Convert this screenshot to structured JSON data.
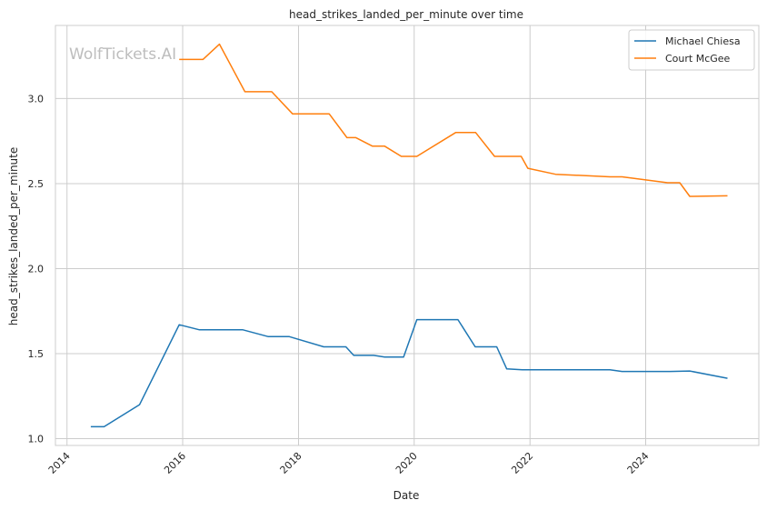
{
  "chart_data": {
    "type": "line",
    "title": "head_strikes_landed_per_minute over time",
    "xlabel": "Date",
    "ylabel": "head_strikes_landed_per_minute",
    "watermark": "WolfTickets.AI",
    "x_ticks": [
      "2014",
      "2016",
      "2018",
      "2020",
      "2022",
      "2024"
    ],
    "y_ticks": [
      "1.0",
      "1.5",
      "2.0",
      "2.5",
      "3.0"
    ],
    "xlim": [
      "2013-10-20",
      "2025-12-15"
    ],
    "ylim": [
      0.96,
      3.43
    ],
    "grid": true,
    "legend_position": "top-right",
    "series": [
      {
        "name": "Michael Chiesa",
        "color": "#1f77b4",
        "points": [
          {
            "x": "2014-05-31",
            "y": 1.07
          },
          {
            "x": "2014-08-23",
            "y": 1.07
          },
          {
            "x": "2015-04-04",
            "y": 1.2
          },
          {
            "x": "2015-12-10",
            "y": 1.67
          },
          {
            "x": "2016-04-16",
            "y": 1.64
          },
          {
            "x": "2017-01-15",
            "y": 1.64
          },
          {
            "x": "2017-06-25",
            "y": 1.6
          },
          {
            "x": "2017-11-04",
            "y": 1.6
          },
          {
            "x": "2018-06-09",
            "y": 1.54
          },
          {
            "x": "2018-10-27",
            "y": 1.54
          },
          {
            "x": "2018-12-15",
            "y": 1.49
          },
          {
            "x": "2019-04-20",
            "y": 1.49
          },
          {
            "x": "2019-06-29",
            "y": 1.48
          },
          {
            "x": "2019-10-26",
            "y": 1.48
          },
          {
            "x": "2020-01-18",
            "y": 1.7
          },
          {
            "x": "2020-10-03",
            "y": 1.7
          },
          {
            "x": "2021-01-20",
            "y": 1.54
          },
          {
            "x": "2021-06-05",
            "y": 1.54
          },
          {
            "x": "2021-08-07",
            "y": 1.41
          },
          {
            "x": "2021-11-13",
            "y": 1.405
          },
          {
            "x": "2023-05-20",
            "y": 1.405
          },
          {
            "x": "2023-08-05",
            "y": 1.395
          },
          {
            "x": "2024-06-01",
            "y": 1.395
          },
          {
            "x": "2024-10-05",
            "y": 1.398
          },
          {
            "x": "2025-05-31",
            "y": 1.355
          }
        ]
      },
      {
        "name": "Court McGee",
        "color": "#ff7f0e",
        "points": [
          {
            "x": "2015-12-10",
            "y": 3.23
          },
          {
            "x": "2016-05-08",
            "y": 3.23
          },
          {
            "x": "2016-08-20",
            "y": 3.32
          },
          {
            "x": "2017-01-28",
            "y": 3.04
          },
          {
            "x": "2017-07-16",
            "y": 3.04
          },
          {
            "x": "2017-11-25",
            "y": 2.91
          },
          {
            "x": "2018-07-14",
            "y": 2.91
          },
          {
            "x": "2018-11-03",
            "y": 2.77
          },
          {
            "x": "2018-12-29",
            "y": 2.77
          },
          {
            "x": "2019-04-13",
            "y": 2.72
          },
          {
            "x": "2019-06-29",
            "y": 2.72
          },
          {
            "x": "2019-10-12",
            "y": 2.66
          },
          {
            "x": "2020-01-18",
            "y": 2.66
          },
          {
            "x": "2020-09-19",
            "y": 2.8
          },
          {
            "x": "2021-01-23",
            "y": 2.8
          },
          {
            "x": "2021-05-22",
            "y": 2.66
          },
          {
            "x": "2021-11-06",
            "y": 2.66
          },
          {
            "x": "2021-12-18",
            "y": 2.59
          },
          {
            "x": "2022-06-11",
            "y": 2.555
          },
          {
            "x": "2023-05-20",
            "y": 2.54
          },
          {
            "x": "2023-08-05",
            "y": 2.54
          },
          {
            "x": "2024-05-18",
            "y": 2.505
          },
          {
            "x": "2024-08-03",
            "y": 2.505
          },
          {
            "x": "2024-10-05",
            "y": 2.425
          },
          {
            "x": "2025-05-31",
            "y": 2.428
          }
        ]
      }
    ]
  },
  "colors": {
    "grid": "#cccccc",
    "frame": "#cccccc",
    "text": "#262626",
    "watermark": "#bdbdbd"
  }
}
